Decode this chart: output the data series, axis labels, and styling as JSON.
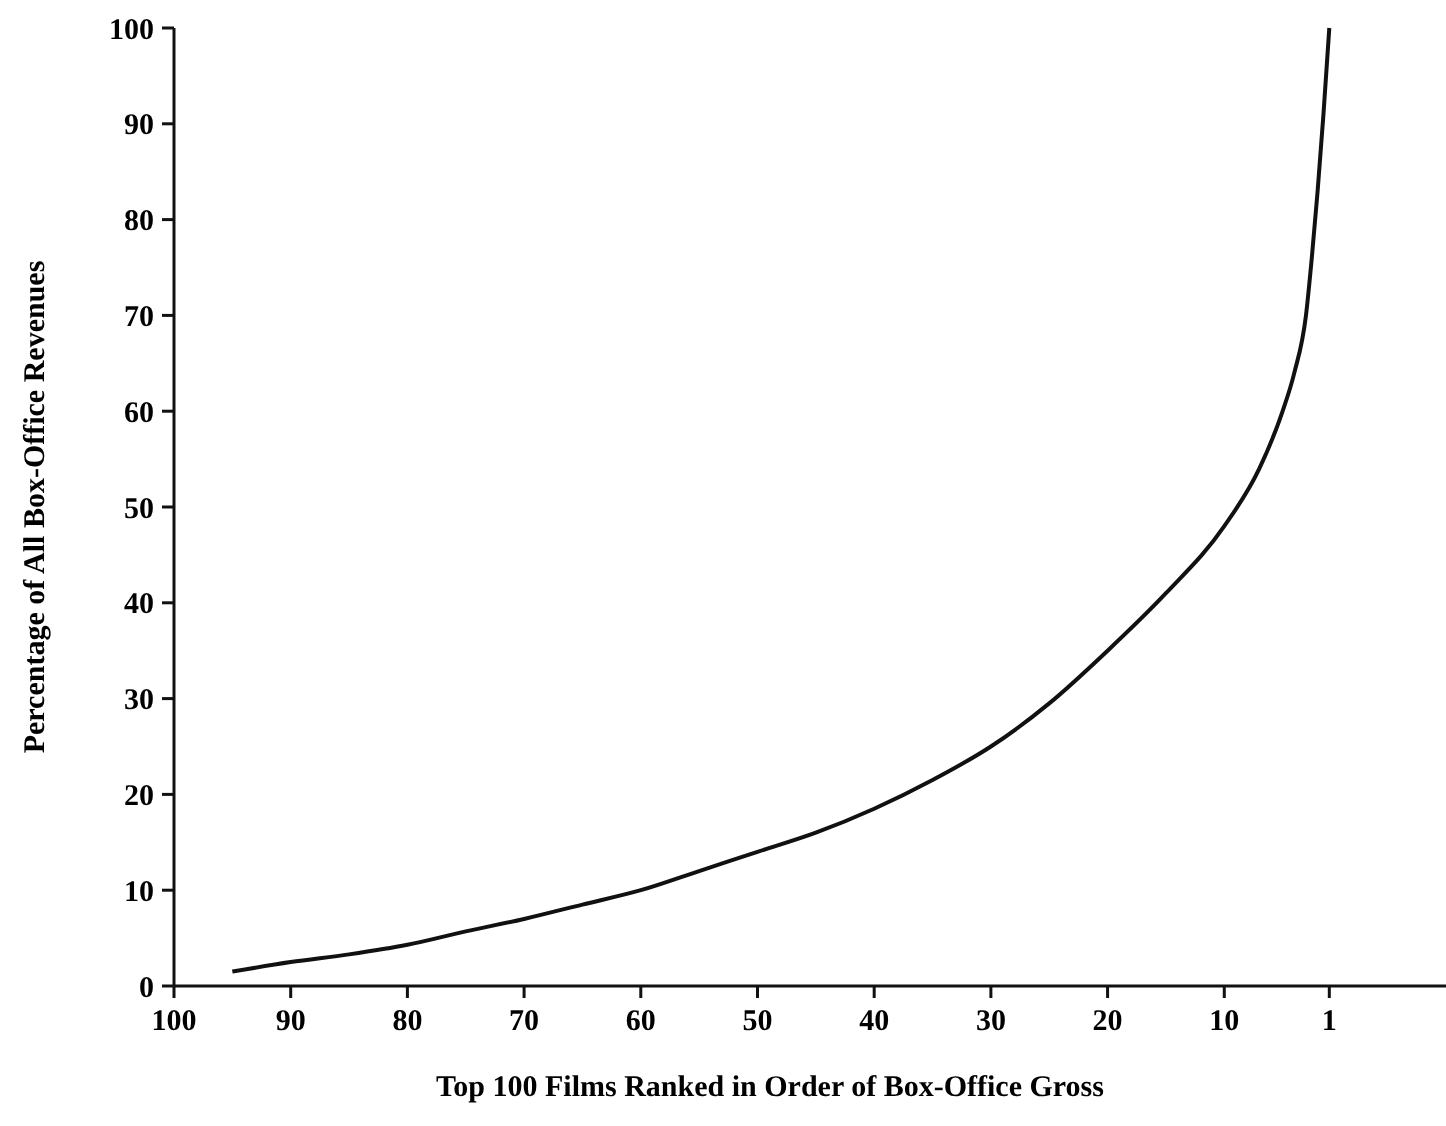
{
  "chart_data": {
    "type": "line",
    "xlabel": "Top 100 Films Ranked in Order of Box-Office Gross",
    "ylabel": "Percentage of All Box-Office Revenues",
    "series": [
      {
        "color": "#111111",
        "x": [
          95,
          90,
          85,
          80,
          75,
          70,
          65,
          60,
          55,
          50,
          45,
          40,
          35,
          30,
          25,
          20,
          15,
          10,
          7,
          5,
          4,
          3,
          2.5,
          2,
          1.5,
          1
        ],
        "values": [
          1.5,
          2.5,
          3.3,
          4.3,
          5.7,
          7,
          8.5,
          10,
          12,
          14,
          16,
          18.5,
          21.5,
          25,
          29.5,
          35,
          41,
          48,
          54,
          60,
          64,
          70,
          76,
          83,
          91,
          100
        ]
      }
    ],
    "xlim": [
      100,
      -9
    ],
    "xticks": [
      100,
      90,
      80,
      70,
      60,
      50,
      40,
      30,
      20,
      10,
      1
    ],
    "ylim": [
      0,
      100
    ],
    "yticks": [
      0,
      10,
      20,
      30,
      40,
      50,
      60,
      70,
      80,
      90,
      100
    ],
    "grid": false,
    "marker": "none",
    "line_style": "solid"
  }
}
